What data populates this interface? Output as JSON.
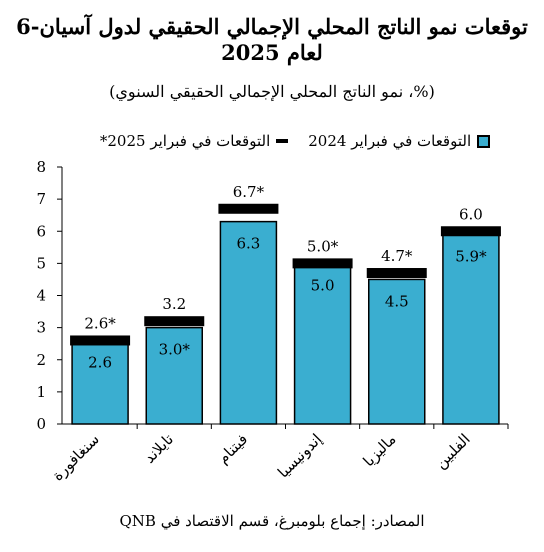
{
  "title_line1": "توقعات نمو الناتج المحلي الإجمالي الحقيقي لدول آسيان-6",
  "title_line2": "لعام 2025",
  "subtitle": "(%، نمو الناتج المحلي الإجمالي الحقيقي السنوي)",
  "legend": {
    "bar_label": "التوقعات في فبراير 2024",
    "line_label": "*التوقعات في فبراير 2025 ‒",
    "line_text": "التوقعات في فبراير 2025*"
  },
  "source": "المصادر: إجماع بلومبرغ، قسم الاقتصاد في QNB",
  "colors": {
    "bar": "#3aaed0",
    "marker": "#000000"
  },
  "chart_data": {
    "type": "bar",
    "categories": [
      "سنغافورة",
      "تايلاند",
      "فيتنام",
      "إندونيسيا",
      "ماليزيا",
      "الفلبين"
    ],
    "series": [
      {
        "name": "التوقعات في فبراير 2024",
        "values": [
          2.6,
          3.0,
          6.3,
          5.0,
          4.5,
          5.9
        ],
        "labels": [
          "2.6",
          "3.0*",
          "6.3",
          "5.0",
          "4.5",
          "5.9*"
        ]
      },
      {
        "name": "التوقعات في فبراير 2025",
        "values": [
          2.6,
          3.2,
          6.7,
          5.0,
          4.7,
          6.0
        ],
        "labels": [
          "2.6*",
          "3.2",
          "6.7*",
          "5.0*",
          "4.7*",
          "6.0"
        ]
      }
    ],
    "ylim": [
      0,
      8
    ],
    "yticks": [
      "0",
      "1",
      "2",
      "3",
      "4",
      "5",
      "6",
      "7",
      "8"
    ]
  }
}
